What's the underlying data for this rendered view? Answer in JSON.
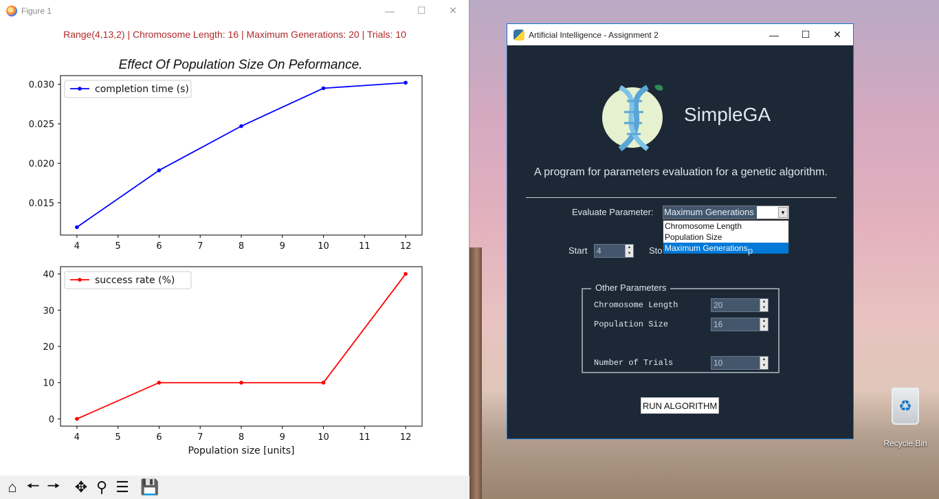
{
  "figure_window": {
    "title": "Figure 1",
    "suptitle": "Range(4,13,2) | Chromosome Length: 16 | Maximum Generations: 20 | Trials: 10",
    "toolbar": [
      "home-icon",
      "back-icon",
      "forward-icon",
      "pan-icon",
      "zoom-icon",
      "configure-icon",
      "save-icon"
    ]
  },
  "chart_data": [
    {
      "type": "line",
      "title": "Effect Of Population Size On Peformance.",
      "x": [
        4,
        6,
        8,
        10,
        12
      ],
      "xticks": [
        4,
        5,
        6,
        7,
        8,
        9,
        10,
        11,
        12
      ],
      "yticks": [
        0.015,
        0.02,
        0.025,
        0.03
      ],
      "ytick_labels": [
        "0.015",
        "0.020",
        "0.025",
        "0.030"
      ],
      "xlim": [
        3.6,
        12.4
      ],
      "ylim": [
        0.0109,
        0.0311
      ],
      "series": [
        {
          "name": "completion time (s)",
          "color": "#0000ff",
          "values": [
            0.0119,
            0.0191,
            0.0247,
            0.0295,
            0.0302
          ]
        }
      ],
      "legend": "upper left",
      "grid": false
    },
    {
      "type": "line",
      "xlabel": "Population size [units]",
      "x": [
        4,
        6,
        8,
        10,
        12
      ],
      "xticks": [
        4,
        5,
        6,
        7,
        8,
        9,
        10,
        11,
        12
      ],
      "yticks": [
        0,
        10,
        20,
        30,
        40
      ],
      "ytick_labels": [
        "0",
        "10",
        "20",
        "30",
        "40"
      ],
      "xlim": [
        3.6,
        12.4
      ],
      "ylim": [
        -2,
        42
      ],
      "series": [
        {
          "name": "success rate (%)",
          "color": "#ff0000",
          "values": [
            0,
            10,
            10,
            10,
            40
          ]
        }
      ],
      "legend": "upper left",
      "grid": false
    }
  ],
  "ga_window": {
    "title": "Artificial Intelligence - Assignment 2",
    "app_name": "SimpleGA",
    "tagline": "A program for parameters evaluation for a genetic algorithm.",
    "evaluate_label": "Evaluate Parameter:",
    "evaluate_value": "Maximum Generations",
    "dropdown_options": [
      "Chromosome Length",
      "Population Size",
      "Maximum Generations"
    ],
    "start_label": "Start",
    "start_value": "4",
    "stop_label": "Sto",
    "step_label": "p",
    "other_params_title": "Other Parameters",
    "params": [
      {
        "label": "Chromosome Length",
        "value": "20"
      },
      {
        "label": "Population Size",
        "value": "16"
      },
      {
        "label": "Number of Trials",
        "value": "10"
      }
    ],
    "run_label": "RUN ALGORITHM"
  },
  "desktop": {
    "recycle_bin_label": "Recycle Bin"
  }
}
